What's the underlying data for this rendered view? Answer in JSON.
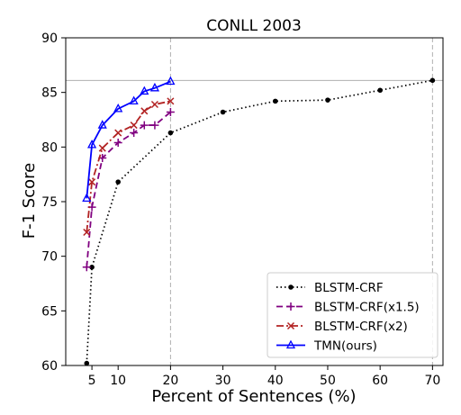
{
  "chart_data": {
    "type": "line",
    "title": "CONLL 2003",
    "xlabel": "Percent of Sentences (%)",
    "ylabel": "F-1 Score",
    "xlim": [
      0,
      72
    ],
    "ylim": [
      60,
      90
    ],
    "xticks": [
      5,
      10,
      20,
      30,
      40,
      50,
      60,
      70
    ],
    "yticks": [
      60,
      65,
      70,
      75,
      80,
      85,
      90
    ],
    "vlines": [
      20,
      70
    ],
    "hline": 86.1,
    "legend_position": "lower-right",
    "series": [
      {
        "name": "BLSTM-CRF",
        "color": "#000000",
        "linestyle": "dotted",
        "marker": "dot",
        "x": [
          4,
          5,
          10,
          20,
          30,
          40,
          50,
          60,
          70
        ],
        "y": [
          60.2,
          69.0,
          76.8,
          81.3,
          83.2,
          84.2,
          84.3,
          85.2,
          86.1
        ]
      },
      {
        "name": "BLSTM-CRF(x1.5)",
        "color": "#800080",
        "linestyle": "dashed",
        "marker": "plus",
        "x": [
          4,
          5,
          7,
          10,
          13,
          15,
          17,
          20
        ],
        "y": [
          69.0,
          74.5,
          79.0,
          80.4,
          81.3,
          82.0,
          82.0,
          83.2
        ]
      },
      {
        "name": "BLSTM-CRF(x2)",
        "color": "#b22222",
        "linestyle": "dashdot",
        "marker": "x",
        "x": [
          4,
          5,
          7,
          10,
          13,
          15,
          17,
          20
        ],
        "y": [
          72.2,
          76.8,
          79.9,
          81.3,
          82.0,
          83.3,
          83.9,
          84.2
        ]
      },
      {
        "name": "TMN(ours)",
        "color": "#0000ff",
        "linestyle": "solid",
        "marker": "triangle",
        "x": [
          4,
          5,
          7,
          10,
          13,
          15,
          17,
          20
        ],
        "y": [
          75.3,
          80.2,
          82.0,
          83.5,
          84.2,
          85.1,
          85.4,
          86.0
        ]
      }
    ]
  }
}
